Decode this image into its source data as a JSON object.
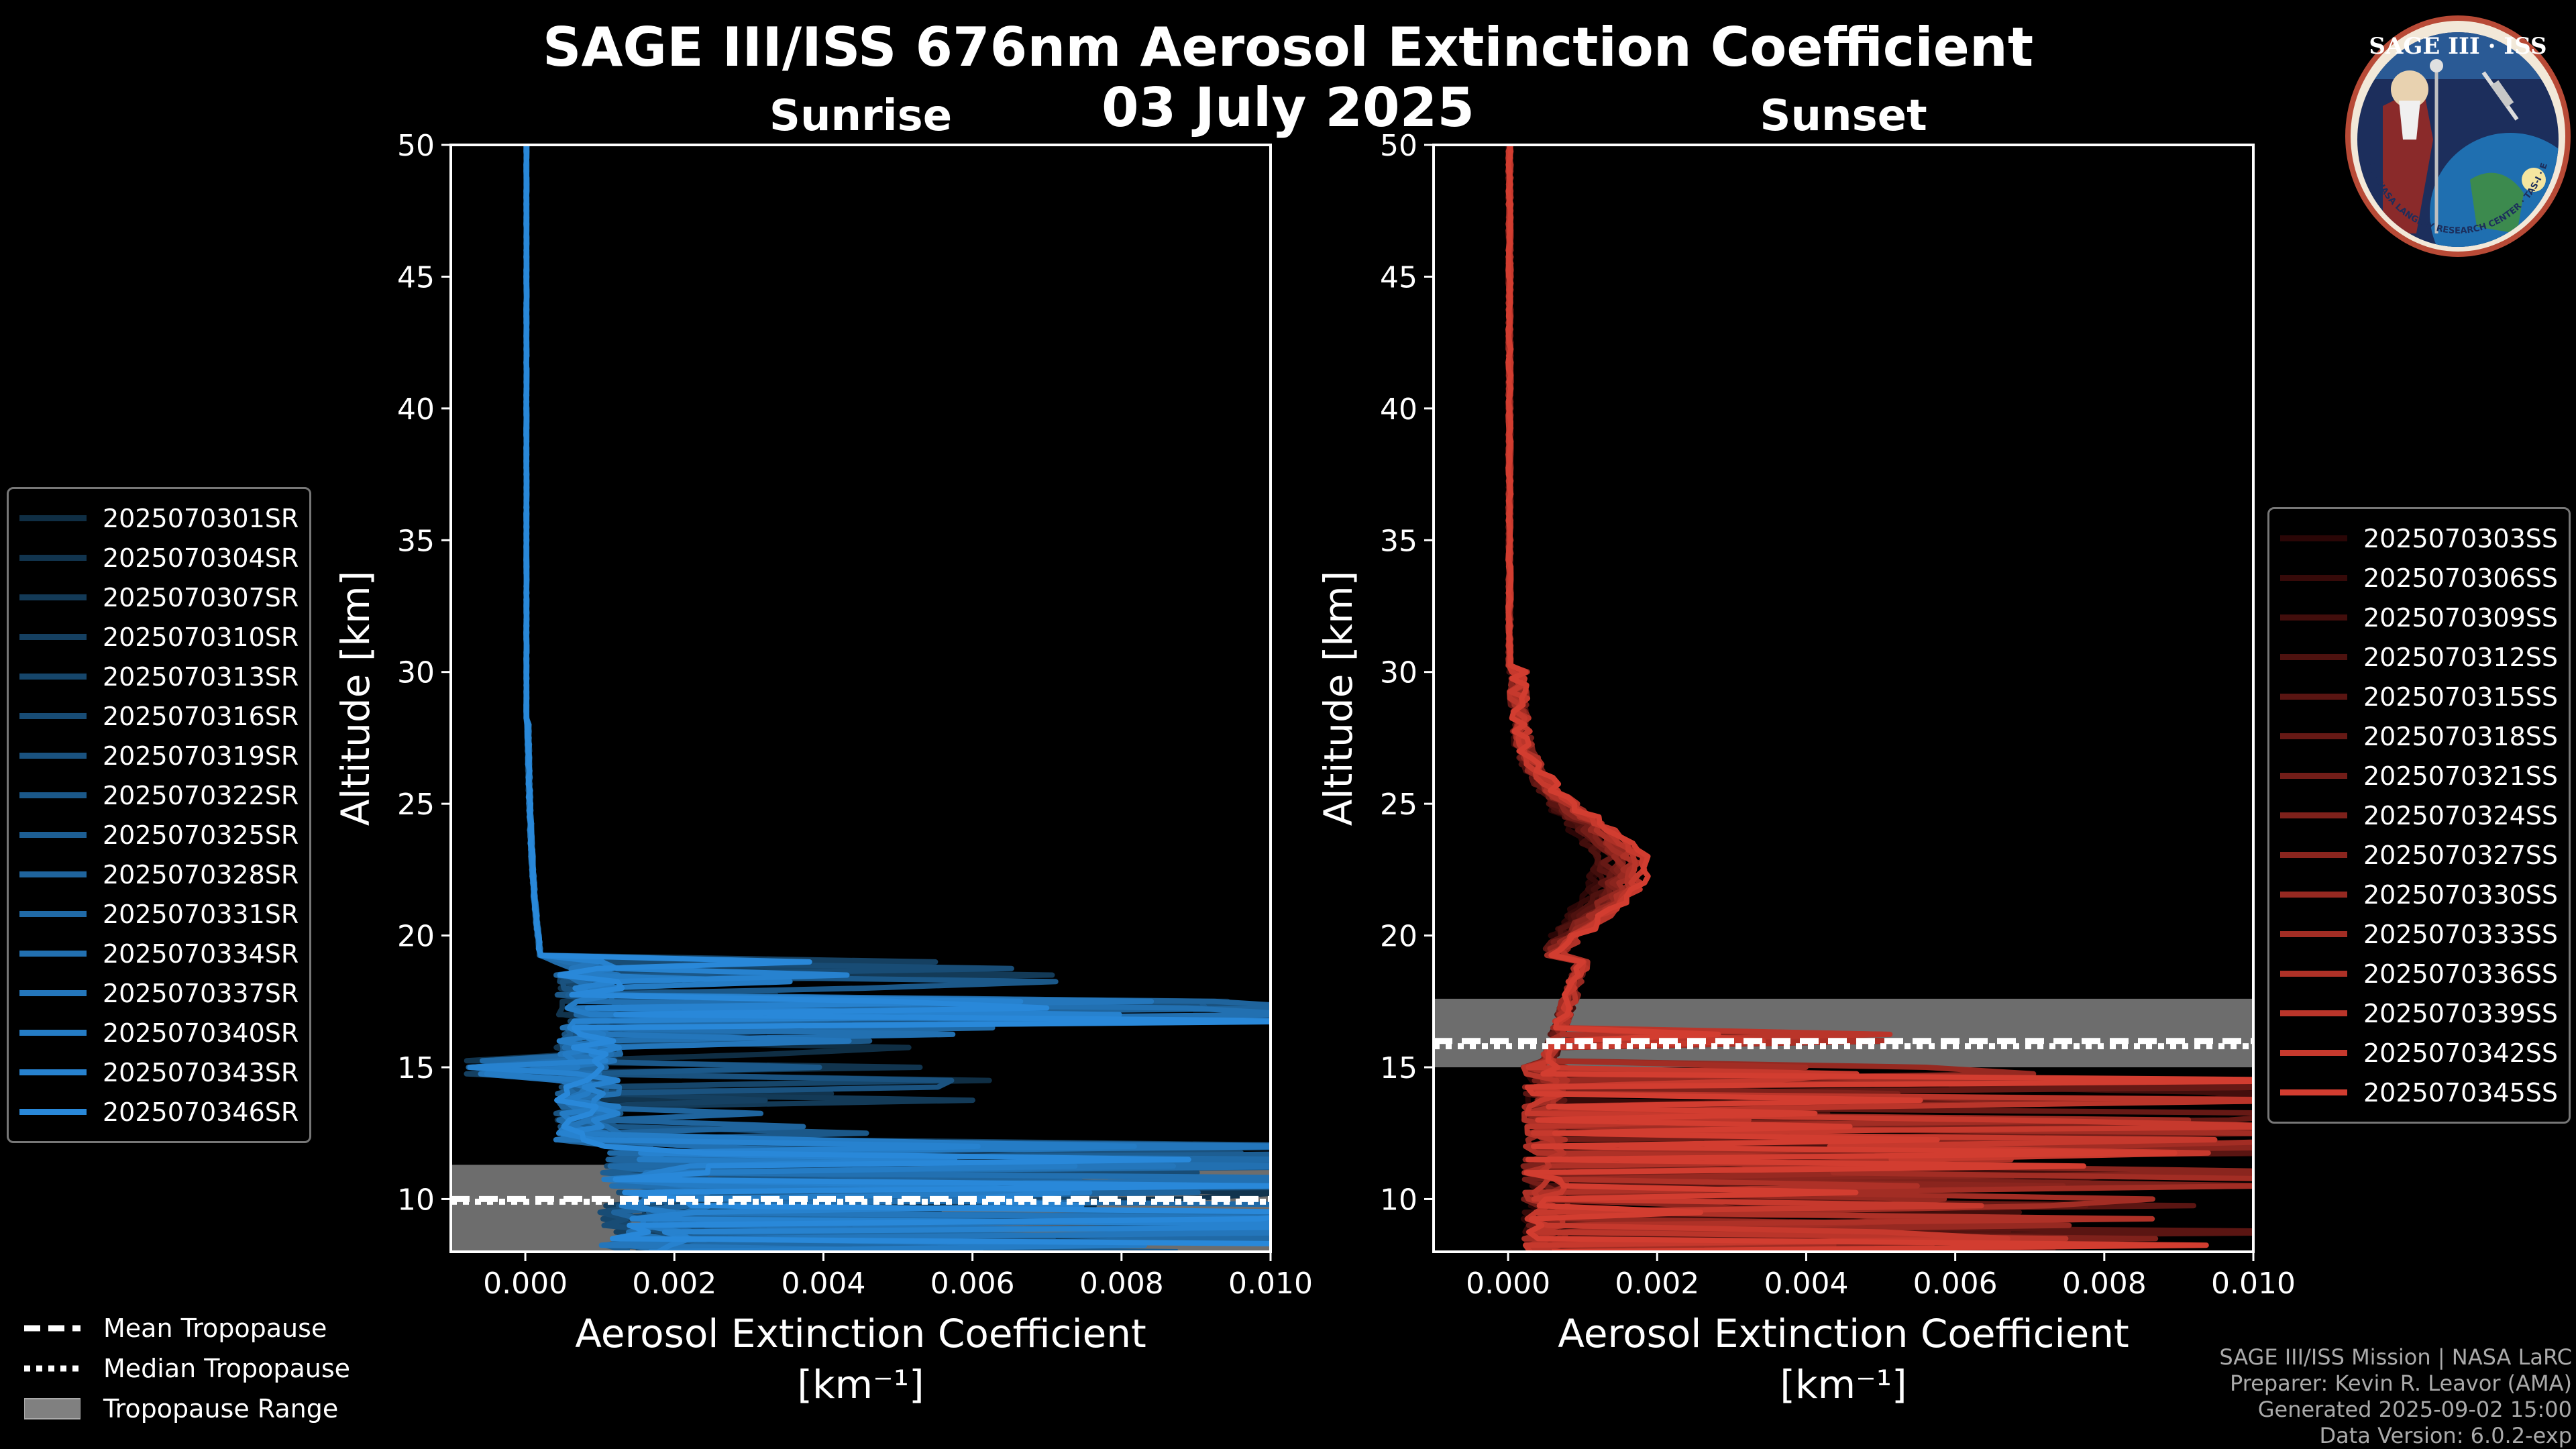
{
  "title": "SAGE III/ISS 676nm Aerosol Extinction Coefficient",
  "subtitle": "03 July 2025",
  "logo_text": "SAGE III · ISS",
  "logo_ring_text": "BALL · NASA LANGLEY RESEARCH CENTER · TAS-I · ESA",
  "chart_data": [
    {
      "type": "line",
      "title": "Sunrise",
      "xlabel": "Aerosol Extinction Coefficient",
      "xunit": "[km⁻¹]",
      "ylabel": "Altitude [km]",
      "xlim": [
        -0.001,
        0.01
      ],
      "ylim": [
        8,
        50
      ],
      "xticks": [
        "0.000",
        "0.002",
        "0.004",
        "0.006",
        "0.008",
        "0.010"
      ],
      "yticks": [
        "10",
        "15",
        "20",
        "25",
        "30",
        "35",
        "40",
        "45",
        "50"
      ],
      "tropopause": {
        "mean": 10.0,
        "median": 9.9,
        "range": [
          8.0,
          11.3
        ]
      },
      "series_colors": [
        "#0f2e44",
        "#11344e",
        "#133a57",
        "#154061",
        "#16466b",
        "#184c75",
        "#1a527f",
        "#1b5889",
        "#1d5e93",
        "#1f649d",
        "#206aa7",
        "#2270b1",
        "#2476bb",
        "#257cc5",
        "#2782cf",
        "#2988d9"
      ],
      "series_names": [
        "2025070301SR",
        "2025070304SR",
        "2025070307SR",
        "2025070310SR",
        "2025070313SR",
        "2025070316SR",
        "2025070319SR",
        "2025070322SR",
        "2025070325SR",
        "2025070328SR",
        "2025070331SR",
        "2025070334SR",
        "2025070337SR",
        "2025070340SR",
        "2025070343SR",
        "2025070346SR"
      ]
    },
    {
      "type": "line",
      "title": "Sunset",
      "xlabel": "Aerosol Extinction Coefficient",
      "xunit": "[km⁻¹]",
      "ylabel": "Altitude [km]",
      "xlim": [
        -0.001,
        0.01
      ],
      "ylim": [
        8,
        50
      ],
      "xticks": [
        "0.000",
        "0.002",
        "0.004",
        "0.006",
        "0.008",
        "0.010"
      ],
      "yticks": [
        "10",
        "15",
        "20",
        "25",
        "30",
        "35",
        "40",
        "45",
        "50"
      ],
      "tropopause": {
        "mean": 16.0,
        "median": 15.8,
        "range": [
          15.0,
          17.6
        ]
      },
      "series_colors": [
        "#2a0606",
        "#360a09",
        "#420e0c",
        "#4e120f",
        "#5a1512",
        "#661915",
        "#721d18",
        "#7e211b",
        "#8a251e",
        "#962921",
        "#a22d24",
        "#ae3127",
        "#ba352a",
        "#c6392d",
        "#d23d30"
      ],
      "series_names": [
        "2025070303SS",
        "2025070306SS",
        "2025070309SS",
        "2025070312SS",
        "2025070315SS",
        "2025070318SS",
        "2025070321SS",
        "2025070324SS",
        "2025070327SS",
        "2025070330SS",
        "2025070333SS",
        "2025070336SS",
        "2025070339SS",
        "2025070342SS",
        "2025070345SS"
      ]
    }
  ],
  "tropopause_legend": {
    "mean": "Mean Tropopause",
    "median": "Median Tropopause",
    "range": "Tropopause Range"
  },
  "footer": {
    "line1": "SAGE III/ISS Mission | NASA LaRC",
    "line2": "Preparer: Kevin R. Leavor (AMA)",
    "line3": "Generated 2025-09-02 15:00",
    "line4": "Data Version: 6.0.2-exp"
  }
}
